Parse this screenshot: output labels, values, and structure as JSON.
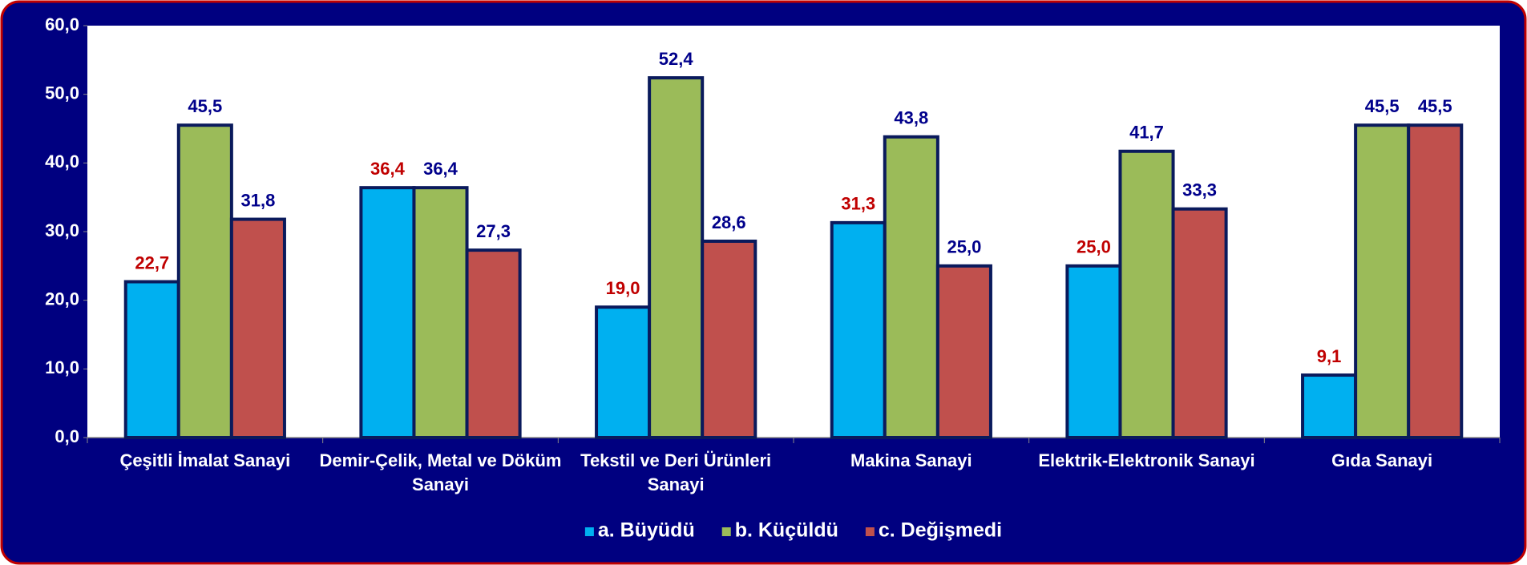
{
  "chart_data": {
    "type": "bar",
    "categories": [
      "Çeşitli İmalat Sanayi",
      "Demir-Çelik, Metal ve Döküm Sanayi",
      "Tekstil ve Deri Ürünleri Sanayi",
      "Makina Sanayi",
      "Elektrik-Elektronik Sanayi",
      "Gıda Sanayi"
    ],
    "series": [
      {
        "name": "a. Büyüdü",
        "color": "#00b0f0",
        "label_color": "#c00000",
        "values": [
          22.7,
          36.4,
          19.0,
          31.3,
          25.0,
          9.1
        ],
        "value_labels": [
          "22,7",
          "36,4",
          "19,0",
          "31,3",
          "25,0",
          "9,1"
        ]
      },
      {
        "name": "b. Küçüldü",
        "color": "#9bbb59",
        "label_color": "#00008b",
        "values": [
          45.5,
          36.4,
          52.4,
          43.8,
          41.7,
          45.5
        ],
        "value_labels": [
          "45,5",
          "36,4",
          "52,4",
          "43,8",
          "41,7",
          "45,5"
        ]
      },
      {
        "name": "c. Değişmedi",
        "color": "#c0504d",
        "label_color": "#00008b",
        "values": [
          31.8,
          27.3,
          28.6,
          25.0,
          33.3,
          45.5
        ],
        "value_labels": [
          "31,8",
          "27,3",
          "28,6",
          "25,0",
          "33,3",
          "45,5"
        ]
      }
    ],
    "ylim": [
      0,
      60
    ],
    "yticks": [
      {
        "value": 0,
        "label": "0,0"
      },
      {
        "value": 10,
        "label": "10,0"
      },
      {
        "value": 20,
        "label": "20,0"
      },
      {
        "value": 30,
        "label": "30,0"
      },
      {
        "value": 40,
        "label": "40,0"
      },
      {
        "value": 50,
        "label": "50,0"
      },
      {
        "value": 60,
        "label": "60,0"
      }
    ],
    "grid": false,
    "legend": "bottom"
  }
}
